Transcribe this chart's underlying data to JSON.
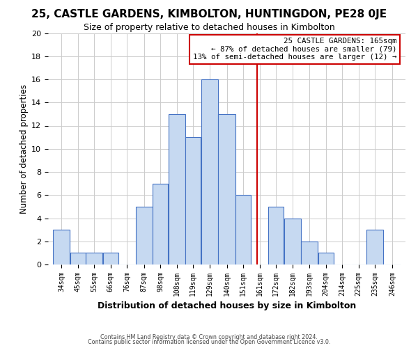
{
  "title": "25, CASTLE GARDENS, KIMBOLTON, HUNTINGDON, PE28 0JE",
  "subtitle": "Size of property relative to detached houses in Kimbolton",
  "xlabel": "Distribution of detached houses by size in Kimbolton",
  "ylabel": "Number of detached properties",
  "footer_line1": "Contains HM Land Registry data © Crown copyright and database right 2024.",
  "footer_line2": "Contains public sector information licensed under the Open Government Licence v3.0.",
  "bin_labels": [
    "34sqm",
    "45sqm",
    "55sqm",
    "66sqm",
    "76sqm",
    "87sqm",
    "98sqm",
    "108sqm",
    "119sqm",
    "129sqm",
    "140sqm",
    "151sqm",
    "161sqm",
    "172sqm",
    "182sqm",
    "193sqm",
    "204sqm",
    "214sqm",
    "225sqm",
    "235sqm",
    "246sqm"
  ],
  "bin_edges": [
    34,
    45,
    55,
    66,
    76,
    87,
    98,
    108,
    119,
    129,
    140,
    151,
    161,
    172,
    182,
    193,
    204,
    214,
    225,
    235,
    246,
    257
  ],
  "counts": [
    3,
    1,
    1,
    1,
    0,
    5,
    7,
    13,
    11,
    16,
    13,
    6,
    0,
    5,
    4,
    2,
    1,
    0,
    0,
    3,
    0
  ],
  "bar_color": "#c6d9f1",
  "bar_edge_color": "#4472c4",
  "property_size": 165,
  "vline_color": "#cc0000",
  "ylim": [
    0,
    20
  ],
  "yticks": [
    0,
    2,
    4,
    6,
    8,
    10,
    12,
    14,
    16,
    18,
    20
  ],
  "annotation_title": "25 CASTLE GARDENS: 165sqm",
  "annotation_line1": "← 87% of detached houses are smaller (79)",
  "annotation_line2": "13% of semi-detached houses are larger (12) →",
  "annotation_box_color": "#ffffff",
  "annotation_box_edge": "#cc0000",
  "grid_color": "#cccccc",
  "background_color": "#ffffff",
  "title_fontsize": 11,
  "subtitle_fontsize": 9
}
